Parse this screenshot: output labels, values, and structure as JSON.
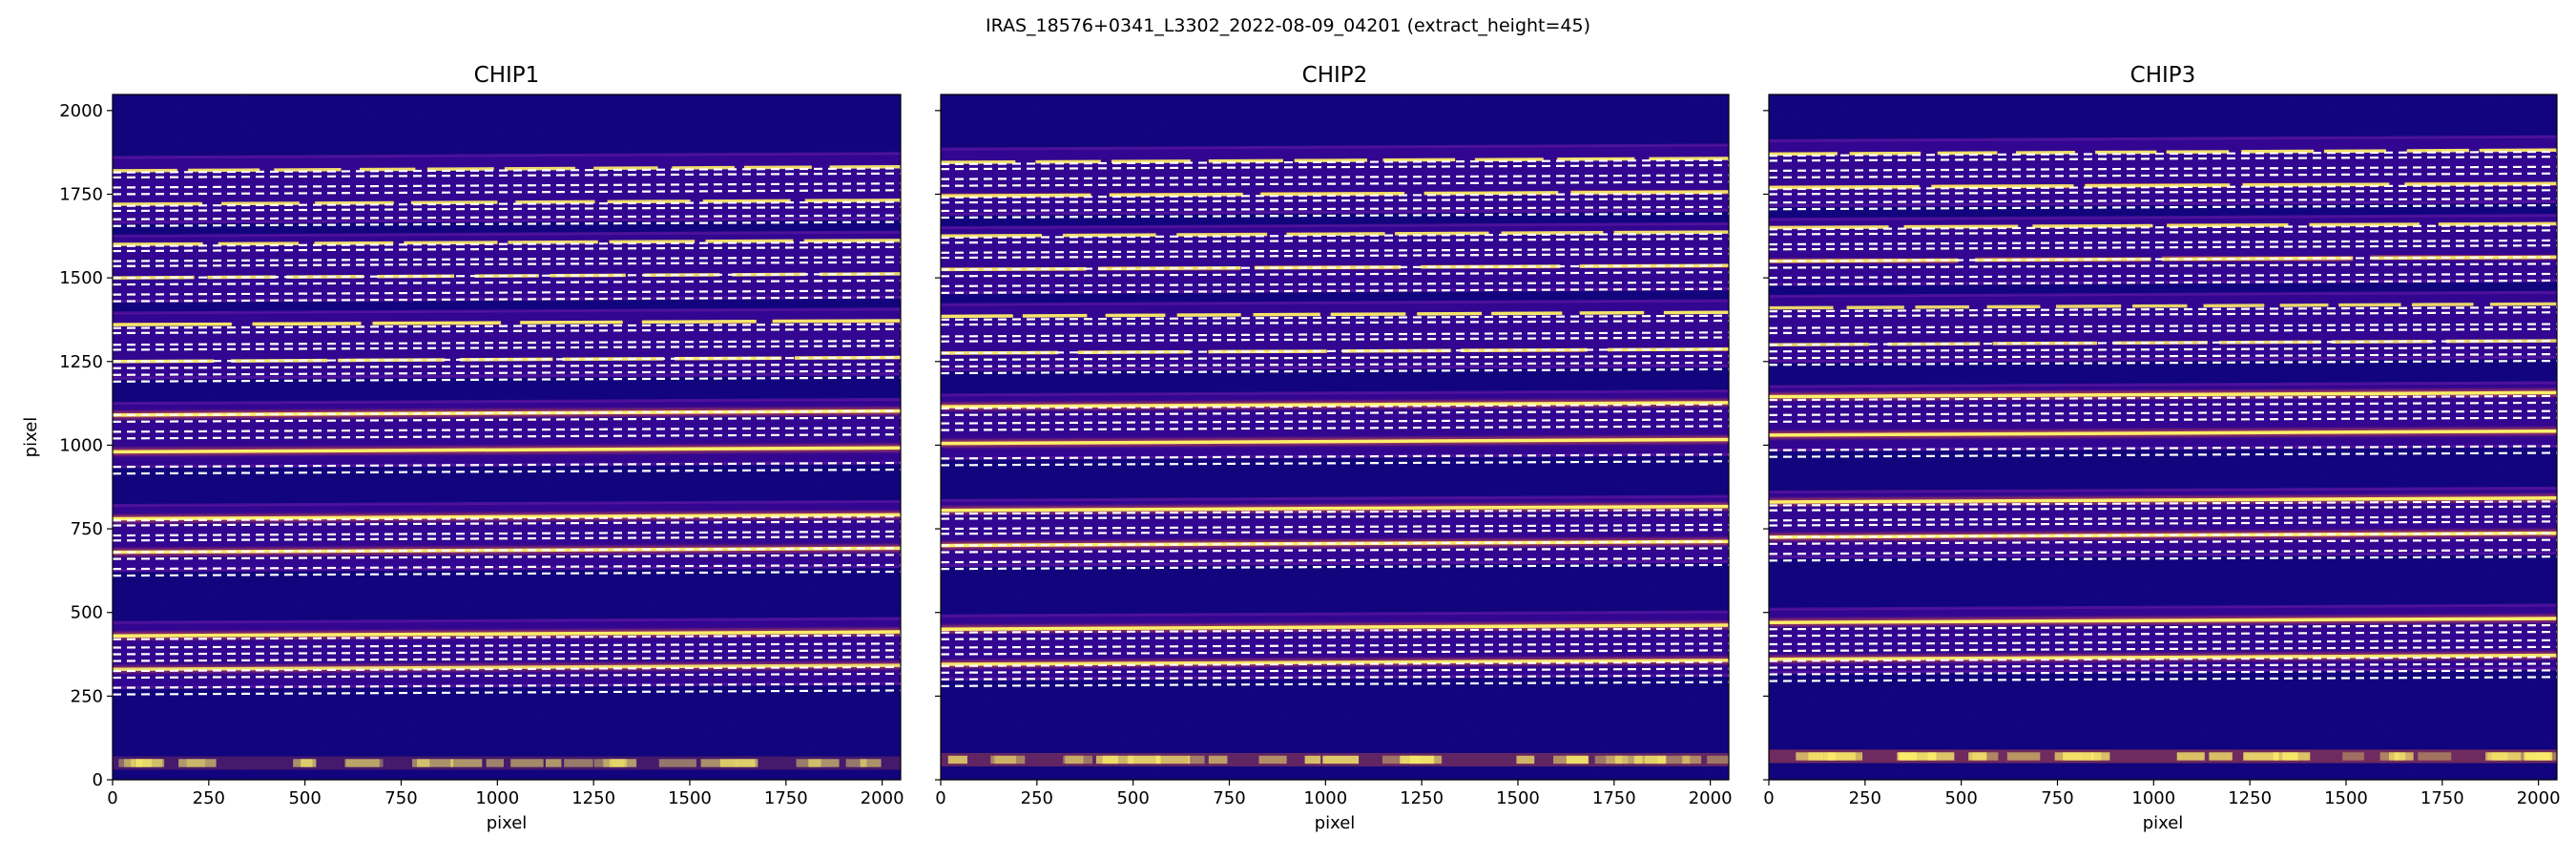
{
  "figure": {
    "suptitle": "IRAS_18576+0341_L3302_2022-08-09_04201  (extract_height=45)"
  },
  "colors": {
    "background": "#12047c",
    "trace_core": "#fcef6a",
    "trace_halo": "#e35a3c",
    "order_band": "#4d0aa0",
    "aperture_lines": "#ffffff"
  },
  "chart_data": [
    {
      "type": "heatmap",
      "title": "CHIP1",
      "xlabel": "pixel",
      "ylabel": "pixel",
      "xlim": [
        0,
        2048
      ],
      "ylim": [
        0,
        2048
      ],
      "xticks": [
        0,
        250,
        500,
        750,
        1000,
        1250,
        1500,
        1750,
        2000
      ],
      "yticks": [
        0,
        250,
        500,
        750,
        1000,
        1250,
        1500,
        1750,
        2000
      ],
      "colormap": "plasma",
      "bottom_band": {
        "y": 50,
        "brightness": 0.55
      },
      "orders": [
        {
          "lo": 275,
          "hi": 470,
          "traces": [
            {
              "y": 330,
              "strength": 0.8,
              "gaps": 0
            },
            {
              "y": 430,
              "strength": 1.0,
              "gaps": 0
            }
          ],
          "apertures": [
            {
              "start": 255,
              "end": 275
            },
            {
              "start": 305,
              "end": 325
            },
            {
              "start": 355,
              "end": 375
            },
            {
              "start": 395,
              "end": 420
            }
          ]
        },
        {
          "lo": 625,
          "hi": 820,
          "traces": [
            {
              "y": 680,
              "strength": 0.9,
              "gaps": 0
            },
            {
              "y": 780,
              "strength": 1.0,
              "gaps": 0
            }
          ],
          "apertures": [
            {
              "start": 610,
              "end": 630
            },
            {
              "start": 660,
              "end": 680
            },
            {
              "start": 715,
              "end": 730
            },
            {
              "start": 760,
              "end": 775
            }
          ]
        },
        {
          "lo": 935,
          "hi": 1125,
          "traces": [
            {
              "y": 980,
              "strength": 1.0,
              "gaps": 0
            },
            {
              "y": 1090,
              "strength": 1.0,
              "gaps": 0
            }
          ],
          "apertures": [
            {
              "start": 915,
              "end": 935
            },
            {
              "start": 1020,
              "end": 1040
            },
            {
              "start": 1070,
              "end": 1090
            }
          ]
        },
        {
          "lo": 1200,
          "hi": 1395,
          "traces": [
            {
              "y": 1250,
              "strength": 0.9,
              "gaps": 6
            },
            {
              "y": 1360,
              "strength": 0.9,
              "gaps": 5
            }
          ],
          "apertures": [
            {
              "start": 1190,
              "end": 1210
            },
            {
              "start": 1230,
              "end": 1250
            },
            {
              "start": 1285,
              "end": 1300
            },
            {
              "start": 1335,
              "end": 1350
            }
          ]
        },
        {
          "lo": 1430,
          "hi": 1625,
          "traces": [
            {
              "y": 1500,
              "strength": 0.8,
              "gaps": 8
            },
            {
              "y": 1600,
              "strength": 0.8,
              "gaps": 7
            }
          ],
          "apertures": [
            {
              "start": 1430,
              "end": 1450
            },
            {
              "start": 1480,
              "end": 1500
            },
            {
              "start": 1535,
              "end": 1550
            },
            {
              "start": 1580,
              "end": 1595
            }
          ]
        },
        {
          "lo": 1665,
          "hi": 1860,
          "traces": [
            {
              "y": 1720,
              "strength": 0.8,
              "gaps": 7
            },
            {
              "y": 1820,
              "strength": 0.8,
              "gaps": 9
            }
          ],
          "apertures": [
            {
              "start": 1655,
              "end": 1675
            },
            {
              "start": 1700,
              "end": 1715
            },
            {
              "start": 1750,
              "end": 1770
            },
            {
              "start": 1800,
              "end": 1815
            }
          ]
        }
      ]
    },
    {
      "type": "heatmap",
      "title": "CHIP2",
      "xlabel": "pixel",
      "ylabel": "",
      "xlim": [
        0,
        2048
      ],
      "ylim": [
        0,
        2048
      ],
      "xticks": [
        0,
        250,
        500,
        750,
        1000,
        1250,
        1500,
        1750,
        2000
      ],
      "yticks": [
        0,
        250,
        500,
        750,
        1000,
        1250,
        1500,
        1750,
        2000
      ],
      "colormap": "plasma",
      "bottom_band": {
        "y": 60,
        "brightness": 0.85
      },
      "orders": [
        {
          "lo": 300,
          "hi": 490,
          "traces": [
            {
              "y": 345,
              "strength": 0.9,
              "gaps": 0
            },
            {
              "y": 450,
              "strength": 1.0,
              "gaps": 0
            }
          ],
          "apertures": [
            {
              "start": 280,
              "end": 300
            },
            {
              "start": 320,
              "end": 340
            },
            {
              "start": 375,
              "end": 395
            },
            {
              "start": 420,
              "end": 440
            }
          ]
        },
        {
          "lo": 640,
          "hi": 835,
          "traces": [
            {
              "y": 700,
              "strength": 1.0,
              "gaps": 0
            },
            {
              "y": 805,
              "strength": 1.0,
              "gaps": 0
            }
          ],
          "apertures": [
            {
              "start": 630,
              "end": 650
            },
            {
              "start": 680,
              "end": 700
            },
            {
              "start": 735,
              "end": 750
            },
            {
              "start": 780,
              "end": 795
            }
          ]
        },
        {
          "lo": 960,
          "hi": 1150,
          "traces": [
            {
              "y": 1005,
              "strength": 1.0,
              "gaps": 0
            },
            {
              "y": 1115,
              "strength": 1.0,
              "gaps": 0
            }
          ],
          "apertures": [
            {
              "start": 940,
              "end": 960
            },
            {
              "start": 1045,
              "end": 1065
            },
            {
              "start": 1090,
              "end": 1110
            }
          ]
        },
        {
          "lo": 1225,
          "hi": 1420,
          "traces": [
            {
              "y": 1275,
              "strength": 0.9,
              "gaps": 5
            },
            {
              "y": 1385,
              "strength": 0.9,
              "gaps": 9
            }
          ],
          "apertures": [
            {
              "start": 1215,
              "end": 1235
            },
            {
              "start": 1255,
              "end": 1275
            },
            {
              "start": 1310,
              "end": 1325
            },
            {
              "start": 1360,
              "end": 1375
            }
          ]
        },
        {
          "lo": 1455,
          "hi": 1650,
          "traces": [
            {
              "y": 1525,
              "strength": 0.85,
              "gaps": 4
            },
            {
              "y": 1625,
              "strength": 0.8,
              "gaps": 6
            }
          ],
          "apertures": [
            {
              "start": 1455,
              "end": 1475
            },
            {
              "start": 1505,
              "end": 1525
            },
            {
              "start": 1560,
              "end": 1575
            },
            {
              "start": 1605,
              "end": 1620
            }
          ]
        },
        {
          "lo": 1690,
          "hi": 1885,
          "traces": [
            {
              "y": 1745,
              "strength": 0.85,
              "gaps": 4
            },
            {
              "y": 1845,
              "strength": 0.85,
              "gaps": 8
            }
          ],
          "apertures": [
            {
              "start": 1680,
              "end": 1700
            },
            {
              "start": 1725,
              "end": 1740
            },
            {
              "start": 1775,
              "end": 1795
            },
            {
              "start": 1825,
              "end": 1840
            }
          ]
        }
      ]
    },
    {
      "type": "heatmap",
      "title": "CHIP3",
      "xlabel": "pixel",
      "ylabel": "",
      "xlim": [
        0,
        2048
      ],
      "ylim": [
        0,
        2048
      ],
      "xticks": [
        0,
        250,
        500,
        750,
        1000,
        1250,
        1500,
        1750,
        2000
      ],
      "yticks": [
        0,
        250,
        500,
        750,
        1000,
        1250,
        1500,
        1750,
        2000
      ],
      "colormap": "plasma",
      "bottom_band": {
        "y": 70,
        "brightness": 1.0
      },
      "orders": [
        {
          "lo": 320,
          "hi": 510,
          "traces": [
            {
              "y": 360,
              "strength": 0.9,
              "gaps": 0
            },
            {
              "y": 470,
              "strength": 1.0,
              "gaps": 0
            }
          ],
          "apertures": [
            {
              "start": 295,
              "end": 315
            },
            {
              "start": 335,
              "end": 355
            },
            {
              "start": 385,
              "end": 405
            },
            {
              "start": 430,
              "end": 450
            }
          ]
        },
        {
          "lo": 665,
          "hi": 860,
          "traces": [
            {
              "y": 725,
              "strength": 1.0,
              "gaps": 0
            },
            {
              "y": 830,
              "strength": 1.0,
              "gaps": 0
            }
          ],
          "apertures": [
            {
              "start": 655,
              "end": 675
            },
            {
              "start": 705,
              "end": 725
            },
            {
              "start": 760,
              "end": 775
            },
            {
              "start": 805,
              "end": 820
            }
          ]
        },
        {
          "lo": 985,
          "hi": 1175,
          "traces": [
            {
              "y": 1030,
              "strength": 1.0,
              "gaps": 0
            },
            {
              "y": 1145,
              "strength": 1.0,
              "gaps": 0
            }
          ],
          "apertures": [
            {
              "start": 965,
              "end": 985
            },
            {
              "start": 1070,
              "end": 1090
            },
            {
              "start": 1115,
              "end": 1135
            }
          ]
        },
        {
          "lo": 1250,
          "hi": 1445,
          "traces": [
            {
              "y": 1300,
              "strength": 0.7,
              "gaps": 6
            },
            {
              "y": 1410,
              "strength": 0.75,
              "gaps": 10
            }
          ],
          "apertures": [
            {
              "start": 1240,
              "end": 1260
            },
            {
              "start": 1280,
              "end": 1300
            },
            {
              "start": 1335,
              "end": 1350
            },
            {
              "start": 1385,
              "end": 1400
            }
          ]
        },
        {
          "lo": 1480,
          "hi": 1675,
          "traces": [
            {
              "y": 1550,
              "strength": 0.85,
              "gaps": 3
            },
            {
              "y": 1650,
              "strength": 0.8,
              "gaps": 5
            }
          ],
          "apertures": [
            {
              "start": 1480,
              "end": 1500
            },
            {
              "start": 1530,
              "end": 1550
            },
            {
              "start": 1585,
              "end": 1600
            },
            {
              "start": 1630,
              "end": 1645
            }
          ]
        },
        {
          "lo": 1715,
          "hi": 1910,
          "traces": [
            {
              "y": 1770,
              "strength": 0.85,
              "gaps": 4
            },
            {
              "y": 1870,
              "strength": 0.85,
              "gaps": 9
            }
          ],
          "apertures": [
            {
              "start": 1705,
              "end": 1725
            },
            {
              "start": 1750,
              "end": 1765
            },
            {
              "start": 1800,
              "end": 1820
            },
            {
              "start": 1850,
              "end": 1865
            }
          ]
        }
      ]
    }
  ]
}
